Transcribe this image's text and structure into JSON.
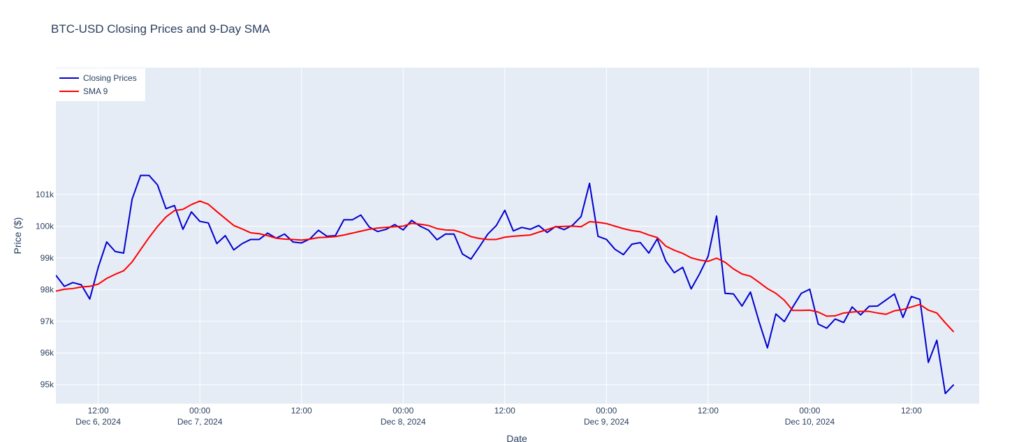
{
  "chart_data": {
    "type": "line",
    "title": "BTC-USD Closing Prices and 9-Day SMA",
    "xlabel": "Date",
    "ylabel": "Price ($)",
    "x_range": [
      "2024-12-06 07:00",
      "2024-12-10 20:00"
    ],
    "ylim": [
      94400,
      105000
    ],
    "grid": true,
    "legend_position": "top-left",
    "x_ticks": [
      {
        "x": "2024-12-06 12:00",
        "label": "12:00",
        "sub": "Dec 6, 2024"
      },
      {
        "x": "2024-12-07 00:00",
        "label": "00:00",
        "sub": "Dec 7, 2024"
      },
      {
        "x": "2024-12-07 12:00",
        "label": "12:00",
        "sub": ""
      },
      {
        "x": "2024-12-08 00:00",
        "label": "00:00",
        "sub": "Dec 8, 2024"
      },
      {
        "x": "2024-12-08 12:00",
        "label": "12:00",
        "sub": ""
      },
      {
        "x": "2024-12-09 00:00",
        "label": "00:00",
        "sub": "Dec 9, 2024"
      },
      {
        "x": "2024-12-09 12:00",
        "label": "12:00",
        "sub": ""
      },
      {
        "x": "2024-12-10 00:00",
        "label": "00:00",
        "sub": "Dec 10, 2024"
      },
      {
        "x": "2024-12-10 12:00",
        "label": "12:00",
        "sub": ""
      }
    ],
    "y_ticks": [
      {
        "value": 95000,
        "label": "95k"
      },
      {
        "value": 96000,
        "label": "96k"
      },
      {
        "value": 97000,
        "label": "97k"
      },
      {
        "value": 98000,
        "label": "98k"
      },
      {
        "value": 99000,
        "label": "99k"
      },
      {
        "value": 100000,
        "label": "100k"
      },
      {
        "value": 101000,
        "label": "101k"
      }
    ],
    "series": [
      {
        "name": "Closing Prices",
        "color": "#0000cd",
        "points": [
          [
            "2024-12-06 07:00",
            98450
          ],
          [
            "2024-12-06 08:00",
            98100
          ],
          [
            "2024-12-06 09:00",
            98220
          ],
          [
            "2024-12-06 10:00",
            98150
          ],
          [
            "2024-12-06 11:00",
            97700
          ],
          [
            "2024-12-06 12:00",
            98700
          ],
          [
            "2024-12-06 13:00",
            99500
          ],
          [
            "2024-12-06 14:00",
            99200
          ],
          [
            "2024-12-06 15:00",
            99150
          ],
          [
            "2024-12-06 16:00",
            100850
          ],
          [
            "2024-12-06 17:00",
            101600
          ],
          [
            "2024-12-06 18:00",
            101600
          ],
          [
            "2024-12-06 19:00",
            101300
          ],
          [
            "2024-12-06 20:00",
            100550
          ],
          [
            "2024-12-06 21:00",
            100650
          ],
          [
            "2024-12-06 22:00",
            99900
          ],
          [
            "2024-12-06 23:00",
            100450
          ],
          [
            "2024-12-07 00:00",
            100150
          ],
          [
            "2024-12-07 01:00",
            100100
          ],
          [
            "2024-12-07 02:00",
            99450
          ],
          [
            "2024-12-07 03:00",
            99700
          ],
          [
            "2024-12-07 04:00",
            99250
          ],
          [
            "2024-12-07 05:00",
            99450
          ],
          [
            "2024-12-07 06:00",
            99580
          ],
          [
            "2024-12-07 07:00",
            99580
          ],
          [
            "2024-12-07 08:00",
            99780
          ],
          [
            "2024-12-07 09:00",
            99620
          ],
          [
            "2024-12-07 10:00",
            99750
          ],
          [
            "2024-12-07 11:00",
            99500
          ],
          [
            "2024-12-07 12:00",
            99470
          ],
          [
            "2024-12-07 13:00",
            99600
          ],
          [
            "2024-12-07 14:00",
            99870
          ],
          [
            "2024-12-07 15:00",
            99680
          ],
          [
            "2024-12-07 16:00",
            99700
          ],
          [
            "2024-12-07 17:00",
            100200
          ],
          [
            "2024-12-07 18:00",
            100200
          ],
          [
            "2024-12-07 19:00",
            100350
          ],
          [
            "2024-12-07 20:00",
            99970
          ],
          [
            "2024-12-07 21:00",
            99830
          ],
          [
            "2024-12-07 22:00",
            99900
          ],
          [
            "2024-12-07 23:00",
            100050
          ],
          [
            "2024-12-08 00:00",
            99880
          ],
          [
            "2024-12-08 01:00",
            100180
          ],
          [
            "2024-12-08 02:00",
            100000
          ],
          [
            "2024-12-08 03:00",
            99870
          ],
          [
            "2024-12-08 04:00",
            99570
          ],
          [
            "2024-12-08 05:00",
            99750
          ],
          [
            "2024-12-08 06:00",
            99750
          ],
          [
            "2024-12-08 07:00",
            99120
          ],
          [
            "2024-12-08 08:00",
            98960
          ],
          [
            "2024-12-08 09:00",
            99350
          ],
          [
            "2024-12-08 10:00",
            99750
          ],
          [
            "2024-12-08 11:00",
            100020
          ],
          [
            "2024-12-08 12:00",
            100500
          ],
          [
            "2024-12-08 13:00",
            99850
          ],
          [
            "2024-12-08 14:00",
            99960
          ],
          [
            "2024-12-08 15:00",
            99900
          ],
          [
            "2024-12-08 16:00",
            100020
          ],
          [
            "2024-12-08 17:00",
            99800
          ],
          [
            "2024-12-08 18:00",
            99990
          ],
          [
            "2024-12-08 19:00",
            99890
          ],
          [
            "2024-12-08 20:00",
            100030
          ],
          [
            "2024-12-08 21:00",
            100300
          ],
          [
            "2024-12-08 22:00",
            101350
          ],
          [
            "2024-12-08 23:00",
            99680
          ],
          [
            "2024-12-09 00:00",
            99580
          ],
          [
            "2024-12-09 01:00",
            99270
          ],
          [
            "2024-12-09 02:00",
            99100
          ],
          [
            "2024-12-09 03:00",
            99430
          ],
          [
            "2024-12-09 04:00",
            99480
          ],
          [
            "2024-12-09 05:00",
            99150
          ],
          [
            "2024-12-09 06:00",
            99600
          ],
          [
            "2024-12-09 07:00",
            98900
          ],
          [
            "2024-12-09 08:00",
            98530
          ],
          [
            "2024-12-09 09:00",
            98700
          ],
          [
            "2024-12-09 10:00",
            98020
          ],
          [
            "2024-12-09 11:00",
            98500
          ],
          [
            "2024-12-09 12:00",
            99050
          ],
          [
            "2024-12-09 13:00",
            100320
          ],
          [
            "2024-12-09 14:00",
            97880
          ],
          [
            "2024-12-09 15:00",
            97860
          ],
          [
            "2024-12-09 16:00",
            97480
          ],
          [
            "2024-12-09 17:00",
            97920
          ],
          [
            "2024-12-09 18:00",
            97000
          ],
          [
            "2024-12-09 19:00",
            96160
          ],
          [
            "2024-12-09 20:00",
            97230
          ],
          [
            "2024-12-09 21:00",
            96990
          ],
          [
            "2024-12-09 22:00",
            97450
          ],
          [
            "2024-12-09 23:00",
            97880
          ],
          [
            "2024-12-10 00:00",
            98010
          ],
          [
            "2024-12-10 01:00",
            96910
          ],
          [
            "2024-12-10 02:00",
            96780
          ],
          [
            "2024-12-10 03:00",
            97070
          ],
          [
            "2024-12-10 04:00",
            96960
          ],
          [
            "2024-12-10 05:00",
            97450
          ],
          [
            "2024-12-10 06:00",
            97200
          ],
          [
            "2024-12-10 07:00",
            97470
          ],
          [
            "2024-12-10 08:00",
            97480
          ],
          [
            "2024-12-10 09:00",
            97670
          ],
          [
            "2024-12-10 10:00",
            97860
          ],
          [
            "2024-12-10 11:00",
            97120
          ],
          [
            "2024-12-10 12:00",
            97780
          ],
          [
            "2024-12-10 13:00",
            97690
          ],
          [
            "2024-12-10 14:00",
            95700
          ],
          [
            "2024-12-10 15:00",
            96400
          ],
          [
            "2024-12-10 16:00",
            94720
          ],
          [
            "2024-12-10 17:00",
            95000
          ]
        ]
      },
      {
        "name": "SMA 9",
        "color": "#ff0000",
        "points": [
          [
            "2024-12-06 07:00",
            97950
          ],
          [
            "2024-12-06 08:00",
            98010
          ],
          [
            "2024-12-06 09:00",
            98030
          ],
          [
            "2024-12-06 10:00",
            98080
          ],
          [
            "2024-12-06 11:00",
            98100
          ],
          [
            "2024-12-06 12:00",
            98170
          ],
          [
            "2024-12-06 13:00",
            98350
          ],
          [
            "2024-12-06 14:00",
            98480
          ],
          [
            "2024-12-06 15:00",
            98590
          ],
          [
            "2024-12-06 16:00",
            98870
          ],
          [
            "2024-12-06 17:00",
            99260
          ],
          [
            "2024-12-06 18:00",
            99640
          ],
          [
            "2024-12-06 19:00",
            99990
          ],
          [
            "2024-12-06 20:00",
            100290
          ],
          [
            "2024-12-06 21:00",
            100490
          ],
          [
            "2024-12-06 22:00",
            100530
          ],
          [
            "2024-12-06 23:00",
            100680
          ],
          [
            "2024-12-07 00:00",
            100790
          ],
          [
            "2024-12-07 01:00",
            100690
          ],
          [
            "2024-12-07 02:00",
            100460
          ],
          [
            "2024-12-07 03:00",
            100240
          ],
          [
            "2024-12-07 04:00",
            100020
          ],
          [
            "2024-12-07 05:00",
            99910
          ],
          [
            "2024-12-07 06:00",
            99790
          ],
          [
            "2024-12-07 07:00",
            99760
          ],
          [
            "2024-12-07 08:00",
            99700
          ],
          [
            "2024-12-07 09:00",
            99620
          ],
          [
            "2024-12-07 10:00",
            99590
          ],
          [
            "2024-12-07 11:00",
            99580
          ],
          [
            "2024-12-07 12:00",
            99560
          ],
          [
            "2024-12-07 13:00",
            99590
          ],
          [
            "2024-12-07 14:00",
            99640
          ],
          [
            "2024-12-07 15:00",
            99650
          ],
          [
            "2024-12-07 16:00",
            99670
          ],
          [
            "2024-12-07 17:00",
            99720
          ],
          [
            "2024-12-07 18:00",
            99780
          ],
          [
            "2024-12-07 19:00",
            99840
          ],
          [
            "2024-12-07 20:00",
            99900
          ],
          [
            "2024-12-07 21:00",
            99940
          ],
          [
            "2024-12-07 22:00",
            99960
          ],
          [
            "2024-12-07 23:00",
            99980
          ],
          [
            "2024-12-08 00:00",
            100000
          ],
          [
            "2024-12-08 01:00",
            100090
          ],
          [
            "2024-12-08 02:00",
            100060
          ],
          [
            "2024-12-08 03:00",
            100020
          ],
          [
            "2024-12-08 04:00",
            99920
          ],
          [
            "2024-12-08 05:00",
            99880
          ],
          [
            "2024-12-08 06:00",
            99870
          ],
          [
            "2024-12-08 07:00",
            99790
          ],
          [
            "2024-12-08 08:00",
            99670
          ],
          [
            "2024-12-08 09:00",
            99610
          ],
          [
            "2024-12-08 10:00",
            99580
          ],
          [
            "2024-12-08 11:00",
            99580
          ],
          [
            "2024-12-08 12:00",
            99650
          ],
          [
            "2024-12-08 13:00",
            99680
          ],
          [
            "2024-12-08 14:00",
            99700
          ],
          [
            "2024-12-08 15:00",
            99720
          ],
          [
            "2024-12-08 16:00",
            99810
          ],
          [
            "2024-12-08 17:00",
            99890
          ],
          [
            "2024-12-08 18:00",
            99980
          ],
          [
            "2024-12-08 19:00",
            99990
          ],
          [
            "2024-12-08 20:00",
            100000
          ],
          [
            "2024-12-08 21:00",
            99980
          ],
          [
            "2024-12-08 22:00",
            100140
          ],
          [
            "2024-12-08 23:00",
            100120
          ],
          [
            "2024-12-09 00:00",
            100080
          ],
          [
            "2024-12-09 01:00",
            100000
          ],
          [
            "2024-12-09 02:00",
            99920
          ],
          [
            "2024-12-09 03:00",
            99860
          ],
          [
            "2024-12-09 04:00",
            99820
          ],
          [
            "2024-12-09 05:00",
            99720
          ],
          [
            "2024-12-09 06:00",
            99640
          ],
          [
            "2024-12-09 07:00",
            99370
          ],
          [
            "2024-12-09 08:00",
            99240
          ],
          [
            "2024-12-09 09:00",
            99140
          ],
          [
            "2024-12-09 10:00",
            99000
          ],
          [
            "2024-12-09 11:00",
            98930
          ],
          [
            "2024-12-09 12:00",
            98890
          ],
          [
            "2024-12-09 13:00",
            98990
          ],
          [
            "2024-12-09 14:00",
            98860
          ],
          [
            "2024-12-09 15:00",
            98650
          ],
          [
            "2024-12-09 16:00",
            98490
          ],
          [
            "2024-12-09 17:00",
            98420
          ],
          [
            "2024-12-09 18:00",
            98230
          ],
          [
            "2024-12-09 19:00",
            98030
          ],
          [
            "2024-12-09 20:00",
            97880
          ],
          [
            "2024-12-09 21:00",
            97660
          ],
          [
            "2024-12-09 22:00",
            97340
          ],
          [
            "2024-12-09 23:00",
            97340
          ],
          [
            "2024-12-10 00:00",
            97350
          ],
          [
            "2024-12-10 01:00",
            97290
          ],
          [
            "2024-12-10 02:00",
            97160
          ],
          [
            "2024-12-10 03:00",
            97170
          ],
          [
            "2024-12-10 04:00",
            97260
          ],
          [
            "2024-12-10 05:00",
            97290
          ],
          [
            "2024-12-10 06:00",
            97310
          ],
          [
            "2024-12-10 07:00",
            97310
          ],
          [
            "2024-12-10 08:00",
            97260
          ],
          [
            "2024-12-10 09:00",
            97220
          ],
          [
            "2024-12-10 10:00",
            97330
          ],
          [
            "2024-12-10 11:00",
            97370
          ],
          [
            "2024-12-10 12:00",
            97450
          ],
          [
            "2024-12-10 13:00",
            97530
          ],
          [
            "2024-12-10 14:00",
            97350
          ],
          [
            "2024-12-10 15:00",
            97260
          ],
          [
            "2024-12-10 16:00",
            96950
          ],
          [
            "2024-12-10 17:00",
            96660
          ]
        ]
      }
    ]
  },
  "colors": {
    "plot_background": "#e5ecf6",
    "grid": "#ffffff",
    "text": "#2a3f5f"
  }
}
